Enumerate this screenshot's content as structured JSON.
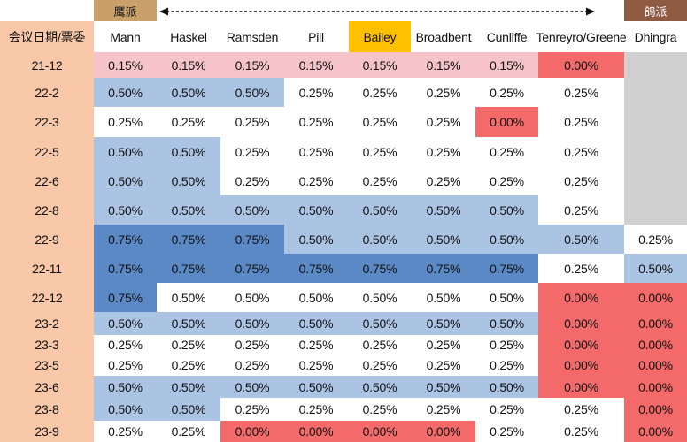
{
  "colors": {
    "row_label_bg": "#f8c8a8",
    "band_label_bg": "#c9a06a",
    "dove_band_bg": "#8e5a42",
    "highlight_header_bg": "#ffc000",
    "unchanged_bg": "#ffffff",
    "shade_0_00": "#f46a6a",
    "shade_0_15": "#f6c4c8",
    "shade_0_50": "#abc4e4",
    "shade_0_75": "#5b89c6",
    "not_in_committee_bg": "#d0d0d0"
  },
  "legend": {
    "hawk_label": "鹰派",
    "dove_label": "鸽派"
  },
  "chart_data": {
    "type": "table",
    "corner_label": "会议日期/票委",
    "members": [
      "Mann",
      "Haskel",
      "Ramsden",
      "Pill",
      "Bailey",
      "Broadbent",
      "Cunliffe",
      "Tenreyro/Greene",
      "Dhingra"
    ],
    "highlighted_member": "Bailey",
    "meetings": [
      "21-12",
      "22-2",
      "22-3",
      "22-5",
      "22-6",
      "22-8",
      "22-9",
      "22-11",
      "22-12",
      "23-2",
      "23-3",
      "23-5",
      "23-6",
      "23-8",
      "23-9"
    ],
    "votes": [
      [
        "0.15%",
        "0.15%",
        "0.15%",
        "0.15%",
        "0.15%",
        "0.15%",
        "0.15%",
        "0.00%",
        ""
      ],
      [
        "0.50%",
        "0.50%",
        "0.50%",
        "0.25%",
        "0.25%",
        "0.25%",
        "0.25%",
        "0.25%",
        ""
      ],
      [
        "0.25%",
        "0.25%",
        "0.25%",
        "0.25%",
        "0.25%",
        "0.25%",
        "0.00%",
        "0.25%",
        ""
      ],
      [
        "0.50%",
        "0.50%",
        "0.25%",
        "0.25%",
        "0.25%",
        "0.25%",
        "0.25%",
        "0.25%",
        ""
      ],
      [
        "0.50%",
        "0.50%",
        "0.25%",
        "0.25%",
        "0.25%",
        "0.25%",
        "0.25%",
        "0.25%",
        ""
      ],
      [
        "0.50%",
        "0.50%",
        "0.50%",
        "0.50%",
        "0.50%",
        "0.50%",
        "0.50%",
        "0.25%",
        ""
      ],
      [
        "0.75%",
        "0.75%",
        "0.75%",
        "0.50%",
        "0.50%",
        "0.50%",
        "0.50%",
        "0.50%",
        "0.25%"
      ],
      [
        "0.75%",
        "0.75%",
        "0.75%",
        "0.75%",
        "0.75%",
        "0.75%",
        "0.75%",
        "0.25%",
        "0.50%"
      ],
      [
        "0.75%",
        "0.50%",
        "0.50%",
        "0.50%",
        "0.50%",
        "0.50%",
        "0.50%",
        "0.00%",
        "0.00%"
      ],
      [
        "0.50%",
        "0.50%",
        "0.50%",
        "0.50%",
        "0.50%",
        "0.50%",
        "0.50%",
        "0.00%",
        "0.00%"
      ],
      [
        "0.25%",
        "0.25%",
        "0.25%",
        "0.25%",
        "0.25%",
        "0.25%",
        "0.25%",
        "0.00%",
        "0.00%"
      ],
      [
        "0.25%",
        "0.25%",
        "0.25%",
        "0.25%",
        "0.25%",
        "0.25%",
        "0.25%",
        "0.00%",
        "0.00%"
      ],
      [
        "0.50%",
        "0.50%",
        "0.50%",
        "0.50%",
        "0.50%",
        "0.50%",
        "0.50%",
        "0.00%",
        "0.00%"
      ],
      [
        "0.50%",
        "0.50%",
        "0.25%",
        "0.25%",
        "0.25%",
        "0.25%",
        "0.25%",
        "0.25%",
        "0.00%"
      ],
      [
        "0.25%",
        "0.25%",
        "0.00%",
        "0.00%",
        "0.00%",
        "0.00%",
        "0.25%",
        "0.25%",
        "0.00%"
      ]
    ],
    "cell_shading": [
      [
        "0.15",
        "0.15",
        "0.15",
        "0.15",
        "0.15",
        "0.15",
        "0.15",
        "0.00",
        "absent"
      ],
      [
        "0.50",
        "0.50",
        "0.50",
        "none",
        "none",
        "none",
        "none",
        "none",
        "absent"
      ],
      [
        "none",
        "none",
        "none",
        "none",
        "none",
        "none",
        "0.00",
        "none",
        "absent"
      ],
      [
        "0.50",
        "0.50",
        "none",
        "none",
        "none",
        "none",
        "none",
        "none",
        "absent"
      ],
      [
        "0.50",
        "0.50",
        "none",
        "none",
        "none",
        "none",
        "none",
        "none",
        "absent"
      ],
      [
        "0.50",
        "0.50",
        "0.50",
        "0.50",
        "0.50",
        "0.50",
        "0.50",
        "none",
        "absent"
      ],
      [
        "0.75",
        "0.75",
        "0.75",
        "0.50",
        "0.50",
        "0.50",
        "0.50",
        "0.50",
        "none"
      ],
      [
        "0.75",
        "0.75",
        "0.75",
        "0.75",
        "0.75",
        "0.75",
        "0.75",
        "none",
        "0.50"
      ],
      [
        "0.75",
        "none",
        "none",
        "none",
        "none",
        "none",
        "none",
        "0.00",
        "0.00"
      ],
      [
        "0.50",
        "0.50",
        "0.50",
        "0.50",
        "0.50",
        "0.50",
        "0.50",
        "0.00",
        "0.00"
      ],
      [
        "none",
        "none",
        "none",
        "none",
        "none",
        "none",
        "none",
        "0.00",
        "0.00"
      ],
      [
        "none",
        "none",
        "none",
        "none",
        "none",
        "none",
        "none",
        "0.00",
        "0.00"
      ],
      [
        "0.50",
        "0.50",
        "0.50",
        "0.50",
        "0.50",
        "0.50",
        "0.50",
        "0.00",
        "0.00"
      ],
      [
        "0.50",
        "0.50",
        "none",
        "none",
        "none",
        "none",
        "none",
        "none",
        "0.00"
      ],
      [
        "none",
        "none",
        "0.00",
        "0.00",
        "0.00",
        "0.00",
        "none",
        "none",
        "0.00"
      ]
    ]
  }
}
